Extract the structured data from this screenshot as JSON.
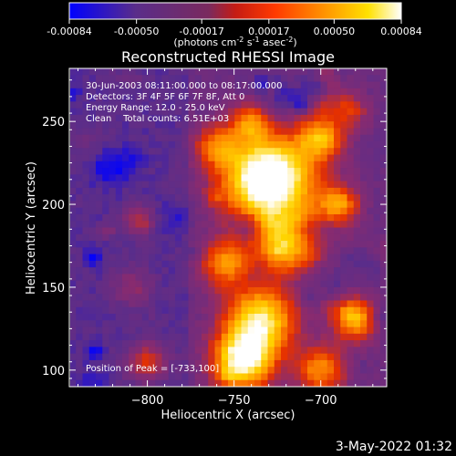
{
  "colorbar": {
    "ticks": [
      "-0.00084",
      "-0.00050",
      "-0.00017",
      "0.00017",
      "0.00050",
      "0.00084"
    ],
    "unit_text": "(photons cm",
    "unit_sup1": "-2",
    "unit_mid": " s",
    "unit_sup2": "-1",
    "unit_end": " asec",
    "unit_sup3": "-2",
    "unit_close": ")"
  },
  "chart_data": {
    "type": "heatmap",
    "title": "Reconstructed RHESSI Image",
    "xlabel": "Heliocentric X (arcsec)",
    "ylabel": "Heliocentric Y (arcsec)",
    "xlim": [
      -845,
      -662
    ],
    "ylim": [
      90,
      282
    ],
    "xticks": [
      -800,
      -750,
      -700
    ],
    "xtick_labels": [
      "−800",
      "−750",
      "−700"
    ],
    "yticks": [
      100,
      150,
      200,
      250
    ],
    "ytick_labels": [
      "100",
      "150",
      "200",
      "250"
    ],
    "color_range": [
      -0.00084,
      0.00084
    ],
    "colormap_stops": [
      "#0000ff",
      "#5a2d8a",
      "#8a2b6e",
      "#e53000",
      "#ff8c00",
      "#ffd400",
      "#ffffff"
    ],
    "grid": false,
    "peak": [
      -733,
      100
    ],
    "annotations": [
      "30-Jun-2003 08:11:00.000 to 08:17:00.000",
      "Detectors: 3F 4F 5F 6F 7F 8F, Att 0",
      "Energy Range: 12.0 - 25.0 keV",
      "Clean    Total counts: 6.51E+03"
    ],
    "peak_label": "Position of Peak = [-733,100]"
  },
  "footer": {
    "timestamp": "3-May-2022 01:32"
  }
}
